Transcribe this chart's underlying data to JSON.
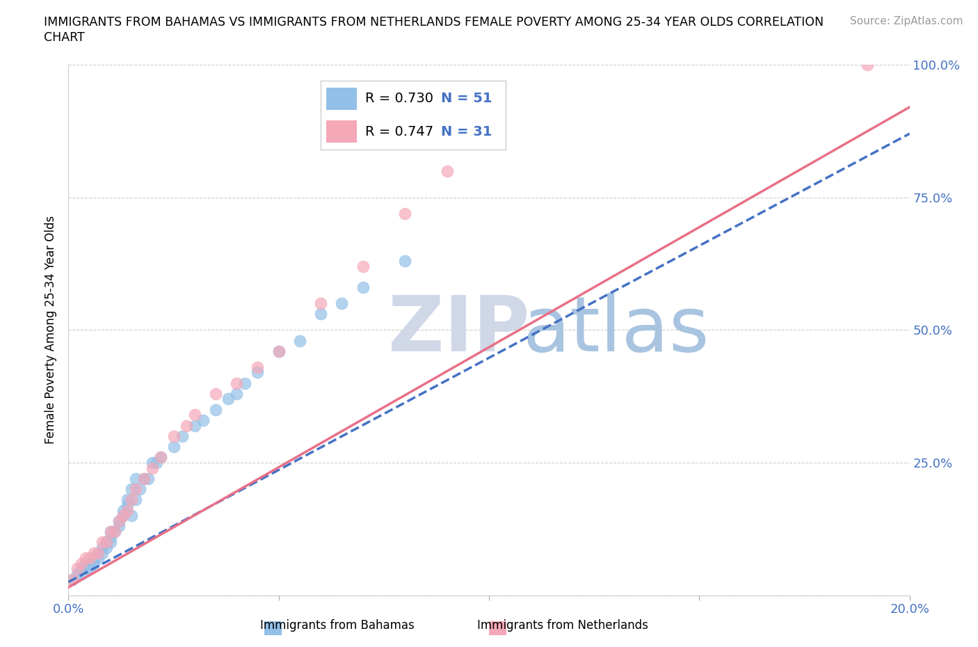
{
  "title_line1": "IMMIGRANTS FROM BAHAMAS VS IMMIGRANTS FROM NETHERLANDS FEMALE POVERTY AMONG 25-34 YEAR OLDS CORRELATION",
  "title_line2": "CHART",
  "source": "Source: ZipAtlas.com",
  "ylabel": "Female Poverty Among 25-34 Year Olds",
  "xlim": [
    0.0,
    0.2
  ],
  "ylim": [
    0.0,
    1.0
  ],
  "xticks": [
    0.0,
    0.05,
    0.1,
    0.15,
    0.2
  ],
  "xtick_labels": [
    "0.0%",
    "",
    "",
    "",
    "20.0%"
  ],
  "yticks": [
    0.0,
    0.25,
    0.5,
    0.75,
    1.0
  ],
  "ytick_labels": [
    "",
    "25.0%",
    "50.0%",
    "75.0%",
    "100.0%"
  ],
  "r_bahamas": 0.73,
  "n_bahamas": 51,
  "r_netherlands": 0.747,
  "n_netherlands": 31,
  "color_bahamas": "#92C0E8",
  "color_netherlands": "#F4A8B8",
  "line_color_bahamas": "#4472C4",
  "line_color_netherlands": "#E87088",
  "watermark_zip_color": "#D0D8E8",
  "watermark_atlas_color": "#A8C4E0",
  "legend_label_bahamas": "Immigrants from Bahamas",
  "legend_label_netherlands": "Immigrants from Netherlands",
  "bahamas_x": [
    0.001,
    0.002,
    0.003,
    0.003,
    0.004,
    0.004,
    0.005,
    0.005,
    0.006,
    0.006,
    0.007,
    0.007,
    0.008,
    0.008,
    0.009,
    0.009,
    0.01,
    0.01,
    0.01,
    0.011,
    0.012,
    0.012,
    0.013,
    0.013,
    0.014,
    0.014,
    0.015,
    0.015,
    0.016,
    0.016,
    0.017,
    0.018,
    0.019,
    0.02,
    0.021,
    0.022,
    0.025,
    0.027,
    0.03,
    0.032,
    0.035,
    0.038,
    0.04,
    0.042,
    0.045,
    0.05,
    0.055,
    0.06,
    0.065,
    0.07,
    0.08
  ],
  "bahamas_y": [
    0.03,
    0.04,
    0.04,
    0.05,
    0.05,
    0.06,
    0.05,
    0.06,
    0.06,
    0.07,
    0.07,
    0.08,
    0.08,
    0.09,
    0.09,
    0.1,
    0.1,
    0.11,
    0.12,
    0.12,
    0.13,
    0.14,
    0.15,
    0.16,
    0.17,
    0.18,
    0.15,
    0.2,
    0.18,
    0.22,
    0.2,
    0.22,
    0.22,
    0.25,
    0.25,
    0.26,
    0.28,
    0.3,
    0.32,
    0.33,
    0.35,
    0.37,
    0.38,
    0.4,
    0.42,
    0.46,
    0.48,
    0.53,
    0.55,
    0.58,
    0.63
  ],
  "netherlands_x": [
    0.001,
    0.002,
    0.003,
    0.004,
    0.005,
    0.006,
    0.007,
    0.008,
    0.009,
    0.01,
    0.011,
    0.012,
    0.013,
    0.014,
    0.015,
    0.016,
    0.018,
    0.02,
    0.022,
    0.025,
    0.028,
    0.03,
    0.035,
    0.04,
    0.045,
    0.05,
    0.06,
    0.07,
    0.08,
    0.09,
    0.19
  ],
  "netherlands_y": [
    0.03,
    0.05,
    0.06,
    0.07,
    0.07,
    0.08,
    0.08,
    0.1,
    0.1,
    0.12,
    0.12,
    0.14,
    0.15,
    0.16,
    0.18,
    0.2,
    0.22,
    0.24,
    0.26,
    0.3,
    0.32,
    0.34,
    0.38,
    0.4,
    0.43,
    0.46,
    0.55,
    0.62,
    0.72,
    0.8,
    1.0
  ],
  "bahamas_line": [
    0.0,
    0.2,
    0.025,
    0.87
  ],
  "netherlands_line": [
    0.0,
    0.2,
    0.015,
    0.92
  ]
}
